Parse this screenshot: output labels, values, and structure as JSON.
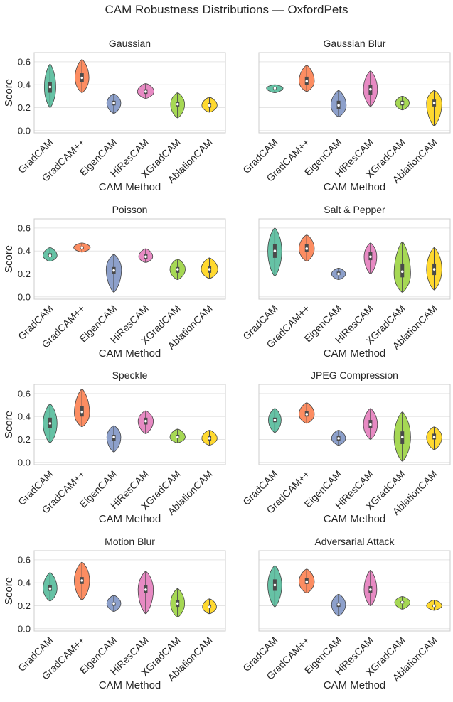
{
  "suptitle": "CAM Robustness Distributions — OxfordPets",
  "colors": {
    "GradCAM": "#66c2a5",
    "GradCAM++": "#fc8d62",
    "EigenCAM": "#8da0cb",
    "HiResCAM": "#e78ac3",
    "XGradCAM": "#a6d854",
    "AblationCAM": "#ffd92f",
    "grid": "#e5e5e5",
    "spine": "#cccccc",
    "box": "#4a4a4a"
  },
  "chart_data": [
    {
      "type": "violin",
      "title": "Gaussian",
      "xlabel": "CAM Method",
      "ylabel": "Score",
      "ylim": [
        -0.02,
        0.68
      ],
      "yticks": [
        "0.0",
        "0.2",
        "0.4",
        "0.6"
      ],
      "categories": [
        "GradCAM",
        "GradCAM++",
        "EigenCAM",
        "HiResCAM",
        "XGradCAM",
        "AblationCAM"
      ],
      "series": [
        {
          "name": "GradCAM",
          "min": 0.2,
          "max": 0.58,
          "mode": 0.38,
          "q1": 0.33,
          "median": 0.38,
          "q3": 0.42,
          "width": 0.18
        },
        {
          "name": "GradCAM++",
          "min": 0.33,
          "max": 0.62,
          "mode": 0.46,
          "q1": 0.42,
          "median": 0.46,
          "q3": 0.5,
          "width": 0.22
        },
        {
          "name": "EigenCAM",
          "min": 0.15,
          "max": 0.32,
          "mode": 0.24,
          "q1": 0.22,
          "median": 0.24,
          "q3": 0.26,
          "width": 0.22
        },
        {
          "name": "HiResCAM",
          "min": 0.28,
          "max": 0.41,
          "mode": 0.34,
          "q1": 0.32,
          "median": 0.34,
          "q3": 0.36,
          "width": 0.26
        },
        {
          "name": "XGradCAM",
          "min": 0.11,
          "max": 0.33,
          "mode": 0.23,
          "q1": 0.21,
          "median": 0.23,
          "q3": 0.25,
          "width": 0.22
        },
        {
          "name": "AblationCAM",
          "min": 0.16,
          "max": 0.29,
          "mode": 0.22,
          "q1": 0.2,
          "median": 0.22,
          "q3": 0.24,
          "width": 0.24
        }
      ]
    },
    {
      "type": "violin",
      "title": "Gaussian Blur",
      "xlabel": "CAM Method",
      "ylabel": "",
      "ylim": [
        -0.02,
        0.68
      ],
      "yticks": [],
      "categories": [
        "GradCAM",
        "GradCAM++",
        "EigenCAM",
        "HiResCAM",
        "XGradCAM",
        "AblationCAM"
      ],
      "series": [
        {
          "name": "GradCAM",
          "min": 0.33,
          "max": 0.4,
          "mode": 0.37,
          "q1": 0.36,
          "median": 0.37,
          "q3": 0.38,
          "width": 0.26
        },
        {
          "name": "GradCAM++",
          "min": 0.34,
          "max": 0.57,
          "mode": 0.43,
          "q1": 0.4,
          "median": 0.43,
          "q3": 0.47,
          "width": 0.24
        },
        {
          "name": "EigenCAM",
          "min": 0.12,
          "max": 0.35,
          "mode": 0.22,
          "q1": 0.19,
          "median": 0.22,
          "q3": 0.26,
          "width": 0.24
        },
        {
          "name": "HiResCAM",
          "min": 0.21,
          "max": 0.52,
          "mode": 0.36,
          "q1": 0.31,
          "median": 0.36,
          "q3": 0.4,
          "width": 0.22
        },
        {
          "name": "XGradCAM",
          "min": 0.18,
          "max": 0.3,
          "mode": 0.24,
          "q1": 0.22,
          "median": 0.24,
          "q3": 0.26,
          "width": 0.22
        },
        {
          "name": "AblationCAM",
          "min": 0.04,
          "max": 0.35,
          "mode": 0.24,
          "q1": 0.21,
          "median": 0.24,
          "q3": 0.27,
          "width": 0.24
        }
      ]
    },
    {
      "type": "violin",
      "title": "Poisson",
      "xlabel": "CAM Method",
      "ylabel": "Score",
      "ylim": [
        -0.02,
        0.68
      ],
      "yticks": [
        "0.0",
        "0.2",
        "0.4",
        "0.6"
      ],
      "categories": [
        "GradCAM",
        "GradCAM++",
        "EigenCAM",
        "HiResCAM",
        "XGradCAM",
        "AblationCAM"
      ],
      "series": [
        {
          "name": "GradCAM",
          "min": 0.31,
          "max": 0.43,
          "mode": 0.36,
          "q1": 0.35,
          "median": 0.36,
          "q3": 0.38,
          "width": 0.22
        },
        {
          "name": "GradCAM++",
          "min": 0.39,
          "max": 0.47,
          "mode": 0.43,
          "q1": 0.42,
          "median": 0.43,
          "q3": 0.44,
          "width": 0.26
        },
        {
          "name": "EigenCAM",
          "min": 0.04,
          "max": 0.37,
          "mode": 0.24,
          "q1": 0.2,
          "median": 0.23,
          "q3": 0.26,
          "width": 0.24
        },
        {
          "name": "HiResCAM",
          "min": 0.3,
          "max": 0.42,
          "mode": 0.35,
          "q1": 0.33,
          "median": 0.35,
          "q3": 0.37,
          "width": 0.22
        },
        {
          "name": "XGradCAM",
          "min": 0.15,
          "max": 0.33,
          "mode": 0.24,
          "q1": 0.21,
          "median": 0.24,
          "q3": 0.26,
          "width": 0.24
        },
        {
          "name": "AblationCAM",
          "min": 0.16,
          "max": 0.34,
          "mode": 0.24,
          "q1": 0.21,
          "median": 0.24,
          "q3": 0.27,
          "width": 0.26
        }
      ]
    },
    {
      "type": "violin",
      "title": "Salt & Pepper",
      "xlabel": "CAM Method",
      "ylabel": "",
      "ylim": [
        -0.02,
        0.68
      ],
      "yticks": [],
      "categories": [
        "GradCAM",
        "GradCAM++",
        "EigenCAM",
        "HiResCAM",
        "XGradCAM",
        "AblationCAM"
      ],
      "series": [
        {
          "name": "GradCAM",
          "min": 0.18,
          "max": 0.6,
          "mode": 0.4,
          "q1": 0.34,
          "median": 0.4,
          "q3": 0.46,
          "width": 0.22
        },
        {
          "name": "GradCAM++",
          "min": 0.31,
          "max": 0.54,
          "mode": 0.42,
          "q1": 0.39,
          "median": 0.42,
          "q3": 0.46,
          "width": 0.24
        },
        {
          "name": "EigenCAM",
          "min": 0.15,
          "max": 0.25,
          "mode": 0.2,
          "q1": 0.19,
          "median": 0.2,
          "q3": 0.22,
          "width": 0.22
        },
        {
          "name": "HiResCAM",
          "min": 0.2,
          "max": 0.47,
          "mode": 0.35,
          "q1": 0.32,
          "median": 0.35,
          "q3": 0.39,
          "width": 0.2
        },
        {
          "name": "XGradCAM",
          "min": 0.04,
          "max": 0.48,
          "mode": 0.2,
          "q1": 0.17,
          "median": 0.22,
          "q3": 0.29,
          "width": 0.26
        },
        {
          "name": "AblationCAM",
          "min": 0.06,
          "max": 0.43,
          "mode": 0.24,
          "q1": 0.19,
          "median": 0.24,
          "q3": 0.29,
          "width": 0.24
        }
      ]
    },
    {
      "type": "violin",
      "title": "Speckle",
      "xlabel": "CAM Method",
      "ylabel": "Score",
      "ylim": [
        -0.02,
        0.68
      ],
      "yticks": [
        "0.0",
        "0.2",
        "0.4",
        "0.6"
      ],
      "categories": [
        "GradCAM",
        "GradCAM++",
        "EigenCAM",
        "HiResCAM",
        "XGradCAM",
        "AblationCAM"
      ],
      "series": [
        {
          "name": "GradCAM",
          "min": 0.17,
          "max": 0.51,
          "mode": 0.34,
          "q1": 0.3,
          "median": 0.34,
          "q3": 0.39,
          "width": 0.22
        },
        {
          "name": "GradCAM++",
          "min": 0.31,
          "max": 0.64,
          "mode": 0.43,
          "q1": 0.4,
          "median": 0.44,
          "q3": 0.49,
          "width": 0.24
        },
        {
          "name": "EigenCAM",
          "min": 0.09,
          "max": 0.32,
          "mode": 0.22,
          "q1": 0.19,
          "median": 0.22,
          "q3": 0.24,
          "width": 0.22
        },
        {
          "name": "HiResCAM",
          "min": 0.25,
          "max": 0.45,
          "mode": 0.36,
          "q1": 0.33,
          "median": 0.36,
          "q3": 0.39,
          "width": 0.24
        },
        {
          "name": "XGradCAM",
          "min": 0.17,
          "max": 0.29,
          "mode": 0.22,
          "q1": 0.21,
          "median": 0.22,
          "q3": 0.24,
          "width": 0.24
        },
        {
          "name": "AblationCAM",
          "min": 0.15,
          "max": 0.28,
          "mode": 0.21,
          "q1": 0.19,
          "median": 0.21,
          "q3": 0.23,
          "width": 0.24
        }
      ]
    },
    {
      "type": "violin",
      "title": "JPEG Compression",
      "xlabel": "CAM Method",
      "ylabel": "",
      "ylim": [
        -0.02,
        0.68
      ],
      "yticks": [],
      "categories": [
        "GradCAM",
        "GradCAM++",
        "EigenCAM",
        "HiResCAM",
        "XGradCAM",
        "AblationCAM"
      ],
      "series": [
        {
          "name": "GradCAM",
          "min": 0.26,
          "max": 0.47,
          "mode": 0.37,
          "q1": 0.35,
          "median": 0.37,
          "q3": 0.39,
          "width": 0.2
        },
        {
          "name": "GradCAM++",
          "min": 0.34,
          "max": 0.52,
          "mode": 0.42,
          "q1": 0.4,
          "median": 0.42,
          "q3": 0.45,
          "width": 0.24
        },
        {
          "name": "EigenCAM",
          "min": 0.15,
          "max": 0.28,
          "mode": 0.21,
          "q1": 0.19,
          "median": 0.21,
          "q3": 0.23,
          "width": 0.22
        },
        {
          "name": "HiResCAM",
          "min": 0.2,
          "max": 0.47,
          "mode": 0.33,
          "q1": 0.3,
          "median": 0.33,
          "q3": 0.37,
          "width": 0.22
        },
        {
          "name": "XGradCAM",
          "min": 0.01,
          "max": 0.44,
          "mode": 0.22,
          "q1": 0.16,
          "median": 0.22,
          "q3": 0.27,
          "width": 0.26
        },
        {
          "name": "AblationCAM",
          "min": 0.11,
          "max": 0.31,
          "mode": 0.22,
          "q1": 0.2,
          "median": 0.22,
          "q3": 0.25,
          "width": 0.24
        }
      ]
    },
    {
      "type": "violin",
      "title": "Motion Blur",
      "xlabel": "CAM Method",
      "ylabel": "Score",
      "ylim": [
        -0.02,
        0.68
      ],
      "yticks": [
        "0.0",
        "0.2",
        "0.4",
        "0.6"
      ],
      "categories": [
        "GradCAM",
        "GradCAM++",
        "EigenCAM",
        "HiResCAM",
        "XGradCAM",
        "AblationCAM"
      ],
      "series": [
        {
          "name": "GradCAM",
          "min": 0.24,
          "max": 0.49,
          "mode": 0.35,
          "q1": 0.33,
          "median": 0.35,
          "q3": 0.38,
          "width": 0.22
        },
        {
          "name": "GradCAM++",
          "min": 0.25,
          "max": 0.58,
          "mode": 0.42,
          "q1": 0.39,
          "median": 0.42,
          "q3": 0.45,
          "width": 0.24
        },
        {
          "name": "EigenCAM",
          "min": 0.15,
          "max": 0.29,
          "mode": 0.22,
          "q1": 0.2,
          "median": 0.22,
          "q3": 0.23,
          "width": 0.22
        },
        {
          "name": "HiResCAM",
          "min": 0.13,
          "max": 0.5,
          "mode": 0.34,
          "q1": 0.31,
          "median": 0.34,
          "q3": 0.38,
          "width": 0.24
        },
        {
          "name": "XGradCAM",
          "min": 0.1,
          "max": 0.35,
          "mode": 0.22,
          "q1": 0.19,
          "median": 0.22,
          "q3": 0.25,
          "width": 0.22
        },
        {
          "name": "AblationCAM",
          "min": 0.13,
          "max": 0.26,
          "mode": 0.19,
          "q1": 0.18,
          "median": 0.19,
          "q3": 0.21,
          "width": 0.22
        }
      ]
    },
    {
      "type": "violin",
      "title": "Adversarial Attack",
      "xlabel": "CAM Method",
      "ylabel": "",
      "ylim": [
        -0.02,
        0.68
      ],
      "yticks": [],
      "categories": [
        "GradCAM",
        "GradCAM++",
        "EigenCAM",
        "HiResCAM",
        "XGradCAM",
        "AblationCAM"
      ],
      "series": [
        {
          "name": "GradCAM",
          "min": 0.19,
          "max": 0.55,
          "mode": 0.38,
          "q1": 0.33,
          "median": 0.38,
          "q3": 0.43,
          "width": 0.22
        },
        {
          "name": "GradCAM++",
          "min": 0.31,
          "max": 0.52,
          "mode": 0.41,
          "q1": 0.39,
          "median": 0.41,
          "q3": 0.44,
          "width": 0.24
        },
        {
          "name": "EigenCAM",
          "min": 0.11,
          "max": 0.3,
          "mode": 0.21,
          "q1": 0.19,
          "median": 0.21,
          "q3": 0.22,
          "width": 0.22
        },
        {
          "name": "HiResCAM",
          "min": 0.2,
          "max": 0.51,
          "mode": 0.34,
          "q1": 0.31,
          "median": 0.34,
          "q3": 0.37,
          "width": 0.2
        },
        {
          "name": "XGradCAM",
          "min": 0.17,
          "max": 0.28,
          "mode": 0.23,
          "q1": 0.22,
          "median": 0.23,
          "q3": 0.24,
          "width": 0.24
        },
        {
          "name": "AblationCAM",
          "min": 0.16,
          "max": 0.25,
          "mode": 0.2,
          "q1": 0.19,
          "median": 0.2,
          "q3": 0.21,
          "width": 0.24
        }
      ]
    }
  ]
}
